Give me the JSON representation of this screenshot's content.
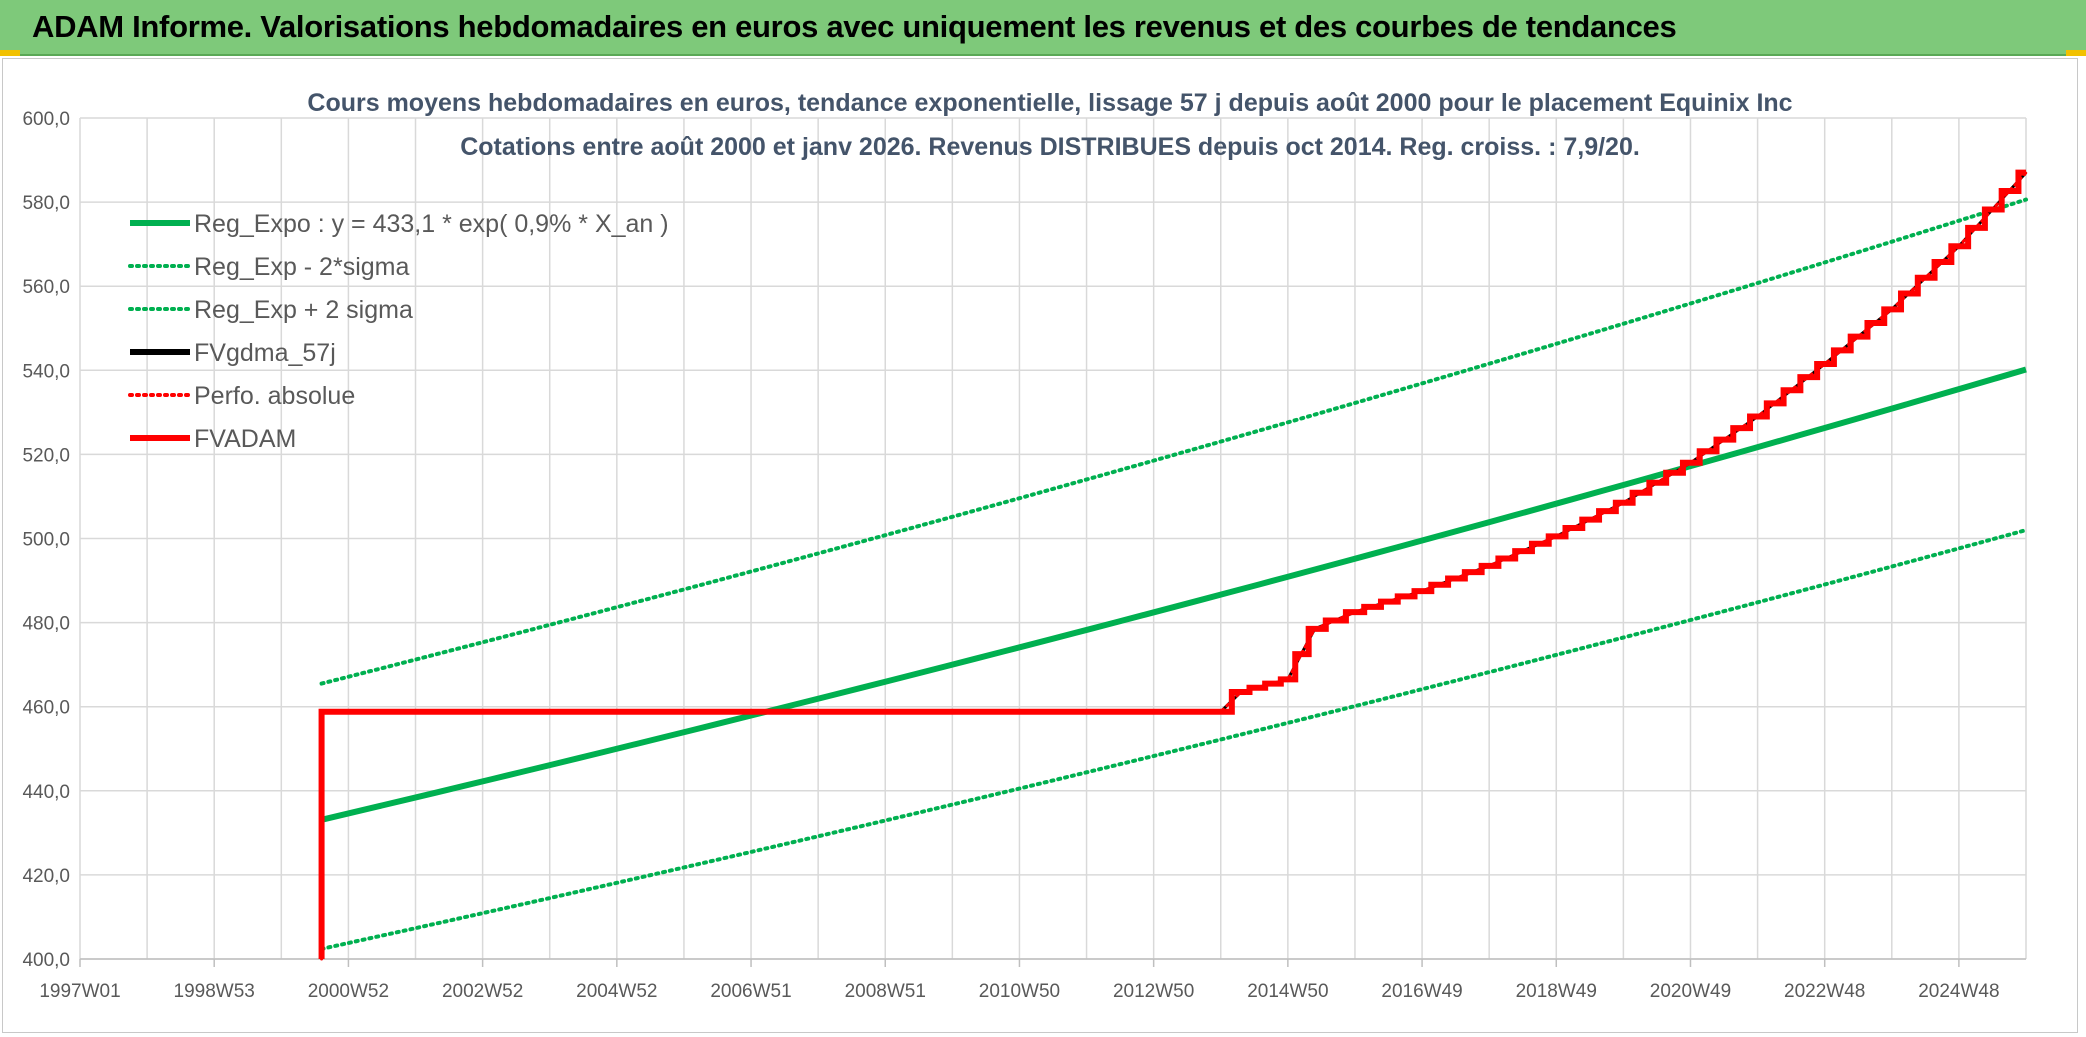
{
  "banner": {
    "title": "ADAM Informe. Valorisations hebdomadaires en euros avec uniquement les revenus et des courbes de tendances",
    "color": "#7ec97a"
  },
  "chart_data": {
    "type": "line",
    "title": "Cours moyens hebdomadaires en euros, tendance exponentielle, lissage 57 j depuis août 2000 pour le placement Equinix Inc",
    "subtitle": "Cotations entre août 2000 et janv 2026. Revenus DISTRIBUES depuis oct 2014. Reg. croiss. : 7,9/20.",
    "ylim": [
      400,
      600
    ],
    "yticks": [
      400,
      420,
      440,
      460,
      480,
      500,
      520,
      540,
      560,
      580,
      600
    ],
    "ytick_labels": [
      "400,0",
      "420,0",
      "440,0",
      "460,0",
      "480,0",
      "500,0",
      "520,0",
      "540,0",
      "560,0",
      "580,0",
      "600,0"
    ],
    "xlim": [
      1997.0,
      2026.0
    ],
    "xticks": [
      1997.0,
      1999.0,
      2001.0,
      2003.0,
      2005.0,
      2007.0,
      2009.0,
      2011.0,
      2013.0,
      2015.0,
      2017.0,
      2019.0,
      2021.0,
      2023.0,
      2025.0
    ],
    "xtick_labels": [
      "1997W01",
      "1998W53",
      "2000W52",
      "2002W52",
      "2004W52",
      "2006W51",
      "2008W51",
      "2010W50",
      "2012W50",
      "2014W50",
      "2016W49",
      "2018W49",
      "2020W49",
      "2022W48",
      "2024W48"
    ],
    "grid": true,
    "legend_position": "top-left",
    "series": [
      {
        "name": "Reg_Expo : y = 433,1 * exp( 0,9% *  X_an )",
        "color": "#00b050",
        "style": "solid",
        "width": 6,
        "x": [
          2000.6,
          2026.0
        ],
        "y": [
          433.1,
          540.2
        ]
      },
      {
        "name": "Reg_Exp - 2*sigma",
        "color": "#00b050",
        "style": "dotted",
        "width": 4,
        "x": [
          2000.6,
          2026.0
        ],
        "y": [
          402.4,
          502.0
        ]
      },
      {
        "name": "Reg_Exp + 2 sigma",
        "color": "#00b050",
        "style": "dotted",
        "width": 4,
        "x": [
          2000.6,
          2026.0
        ],
        "y": [
          465.5,
          580.6
        ]
      },
      {
        "name": "FVgdma_57j",
        "color": "#000000",
        "style": "solid",
        "width": 3,
        "x": [
          2000.6,
          2000.6,
          2014.0,
          2014.3,
          2015.0,
          2015.4,
          2016.0,
          2017.0,
          2018.0,
          2019.0,
          2020.0,
          2021.0,
          2022.0,
          2023.0,
          2024.0,
          2025.0,
          2026.0
        ],
        "y": [
          400.0,
          458.8,
          458.8,
          463.5,
          466.5,
          478.5,
          482.5,
          487.5,
          493.5,
          500.5,
          508.5,
          518.0,
          529.0,
          541.5,
          554.5,
          569.5,
          587.0
        ]
      },
      {
        "name": "Perfo. absolue",
        "color": "#ff0000",
        "style": "dotted",
        "width": 3,
        "x": [
          2000.6,
          2000.6,
          2014.0,
          2014.3,
          2015.0,
          2015.4,
          2016.0,
          2017.0,
          2018.0,
          2019.0,
          2020.0,
          2021.0,
          2022.0,
          2023.0,
          2024.0,
          2025.0,
          2026.0
        ],
        "y": [
          400.0,
          458.8,
          458.8,
          463.5,
          466.5,
          478.5,
          482.5,
          487.5,
          493.5,
          500.5,
          508.5,
          518.0,
          529.0,
          541.5,
          554.5,
          569.5,
          587.0
        ]
      },
      {
        "name": "FVADAM",
        "color": "#ff0000",
        "style": "step",
        "width": 6,
        "x": [
          2000.6,
          2000.6,
          2014.0,
          2014.3,
          2015.0,
          2015.4,
          2016.0,
          2017.0,
          2018.0,
          2019.0,
          2020.0,
          2021.0,
          2022.0,
          2023.0,
          2024.0,
          2025.0,
          2026.0
        ],
        "y": [
          400.0,
          458.8,
          458.8,
          463.5,
          466.5,
          478.5,
          482.5,
          487.5,
          493.5,
          500.5,
          508.5,
          518.0,
          529.0,
          541.5,
          554.5,
          569.5,
          587.0
        ]
      }
    ]
  }
}
